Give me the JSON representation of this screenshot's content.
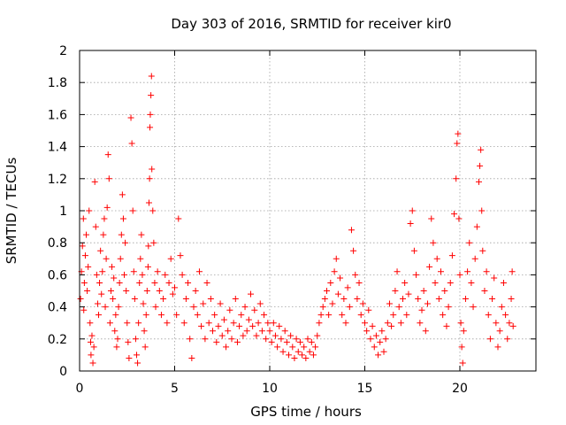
{
  "chart_data": {
    "type": "scatter",
    "title": "Day 303 of 2016, SRMTID for receiver kir0",
    "xlabel": "GPS time / hours",
    "ylabel": "SRMTID / TECUs",
    "xlim": [
      0,
      24
    ],
    "ylim": [
      0,
      2
    ],
    "xticks": [
      0,
      5,
      10,
      15,
      20
    ],
    "xtick_labels": [
      "0",
      "5",
      "10",
      "15",
      "20"
    ],
    "yticks": [
      0,
      0.2,
      0.4,
      0.6,
      0.8,
      1.0,
      1.2,
      1.4,
      1.6,
      1.8,
      2.0
    ],
    "ytick_labels": [
      "0",
      "0.2",
      "0.4",
      "0.6",
      "0.8",
      "1",
      "1.2",
      "1.4",
      "1.6",
      "1.8",
      "2"
    ],
    "grid": true,
    "marker": "+",
    "color": "#ff0000",
    "series": [
      {
        "name": "SRMTID",
        "points": [
          [
            0.05,
            0.45
          ],
          [
            0.1,
            0.62
          ],
          [
            0.15,
            0.78
          ],
          [
            0.2,
            0.95
          ],
          [
            0.22,
            0.38
          ],
          [
            0.25,
            0.55
          ],
          [
            0.3,
            0.72
          ],
          [
            0.35,
            0.85
          ],
          [
            0.4,
            0.5
          ],
          [
            0.45,
            0.65
          ],
          [
            0.5,
            1.0
          ],
          [
            0.55,
            0.3
          ],
          [
            0.58,
            0.18
          ],
          [
            0.6,
            0.1
          ],
          [
            0.65,
            0.22
          ],
          [
            0.7,
            0.05
          ],
          [
            0.75,
            0.15
          ],
          [
            0.8,
            1.18
          ],
          [
            0.85,
            0.9
          ],
          [
            0.9,
            0.6
          ],
          [
            0.95,
            0.42
          ],
          [
            1.0,
            0.35
          ],
          [
            1.05,
            0.55
          ],
          [
            1.1,
            0.75
          ],
          [
            1.15,
            0.48
          ],
          [
            1.2,
            0.62
          ],
          [
            1.25,
            0.85
          ],
          [
            1.3,
            0.95
          ],
          [
            1.35,
            0.4
          ],
          [
            1.4,
            0.7
          ],
          [
            1.45,
            1.02
          ],
          [
            1.5,
            1.35
          ],
          [
            1.55,
            1.2
          ],
          [
            1.6,
            0.3
          ],
          [
            1.65,
            0.5
          ],
          [
            1.7,
            0.65
          ],
          [
            1.75,
            0.45
          ],
          [
            1.8,
            0.58
          ],
          [
            1.85,
            0.25
          ],
          [
            1.9,
            0.35
          ],
          [
            1.95,
            0.15
          ],
          [
            2.0,
            0.2
          ],
          [
            2.05,
            0.4
          ],
          [
            2.1,
            0.55
          ],
          [
            2.15,
            0.7
          ],
          [
            2.2,
            0.85
          ],
          [
            2.25,
            1.1
          ],
          [
            2.3,
            0.95
          ],
          [
            2.35,
            0.6
          ],
          [
            2.4,
            0.8
          ],
          [
            2.45,
            0.5
          ],
          [
            2.5,
            0.3
          ],
          [
            2.55,
            0.18
          ],
          [
            2.6,
            0.08
          ],
          [
            2.7,
            1.58
          ],
          [
            2.75,
            1.42
          ],
          [
            2.8,
            1.0
          ],
          [
            2.85,
            0.62
          ],
          [
            2.9,
            0.45
          ],
          [
            2.95,
            0.2
          ],
          [
            3.0,
            0.1
          ],
          [
            3.05,
            0.05
          ],
          [
            3.1,
            0.3
          ],
          [
            3.15,
            0.55
          ],
          [
            3.2,
            0.7
          ],
          [
            3.25,
            0.85
          ],
          [
            3.3,
            0.6
          ],
          [
            3.35,
            0.42
          ],
          [
            3.4,
            0.25
          ],
          [
            3.45,
            0.15
          ],
          [
            3.5,
            0.35
          ],
          [
            3.55,
            0.5
          ],
          [
            3.6,
            0.65
          ],
          [
            3.62,
            0.78
          ],
          [
            3.65,
            1.05
          ],
          [
            3.68,
            1.2
          ],
          [
            3.7,
            1.52
          ],
          [
            3.72,
            1.6
          ],
          [
            3.75,
            1.72
          ],
          [
            3.78,
            1.84
          ],
          [
            3.8,
            1.26
          ],
          [
            3.85,
            1.0
          ],
          [
            3.9,
            0.8
          ],
          [
            3.95,
            0.55
          ],
          [
            4.0,
            0.4
          ],
          [
            4.1,
            0.62
          ],
          [
            4.2,
            0.5
          ],
          [
            4.3,
            0.35
          ],
          [
            4.4,
            0.45
          ],
          [
            4.5,
            0.6
          ],
          [
            4.6,
            0.3
          ],
          [
            4.7,
            0.55
          ],
          [
            4.8,
            0.7
          ],
          [
            4.9,
            0.48
          ],
          [
            5.0,
            0.52
          ],
          [
            5.1,
            0.35
          ],
          [
            5.2,
            0.95
          ],
          [
            5.3,
            0.72
          ],
          [
            5.4,
            0.6
          ],
          [
            5.5,
            0.3
          ],
          [
            5.6,
            0.45
          ],
          [
            5.7,
            0.55
          ],
          [
            5.8,
            0.2
          ],
          [
            5.9,
            0.08
          ],
          [
            6.0,
            0.4
          ],
          [
            6.1,
            0.5
          ],
          [
            6.2,
            0.35
          ],
          [
            6.3,
            0.62
          ],
          [
            6.4,
            0.28
          ],
          [
            6.5,
            0.42
          ],
          [
            6.6,
            0.2
          ],
          [
            6.7,
            0.55
          ],
          [
            6.8,
            0.3
          ],
          [
            6.9,
            0.45
          ],
          [
            7.0,
            0.25
          ],
          [
            7.1,
            0.35
          ],
          [
            7.2,
            0.18
          ],
          [
            7.3,
            0.28
          ],
          [
            7.4,
            0.42
          ],
          [
            7.5,
            0.22
          ],
          [
            7.6,
            0.32
          ],
          [
            7.7,
            0.15
          ],
          [
            7.8,
            0.25
          ],
          [
            7.9,
            0.38
          ],
          [
            8.0,
            0.2
          ],
          [
            8.1,
            0.3
          ],
          [
            8.2,
            0.45
          ],
          [
            8.3,
            0.18
          ],
          [
            8.4,
            0.28
          ],
          [
            8.5,
            0.35
          ],
          [
            8.6,
            0.22
          ],
          [
            8.7,
            0.4
          ],
          [
            8.8,
            0.25
          ],
          [
            8.9,
            0.32
          ],
          [
            9.0,
            0.48
          ],
          [
            9.1,
            0.28
          ],
          [
            9.2,
            0.38
          ],
          [
            9.3,
            0.22
          ],
          [
            9.4,
            0.3
          ],
          [
            9.5,
            0.42
          ],
          [
            9.6,
            0.25
          ],
          [
            9.7,
            0.35
          ],
          [
            9.8,
            0.2
          ],
          [
            9.9,
            0.3
          ],
          [
            10.0,
            0.25
          ],
          [
            10.1,
            0.18
          ],
          [
            10.2,
            0.3
          ],
          [
            10.3,
            0.22
          ],
          [
            10.4,
            0.15
          ],
          [
            10.5,
            0.28
          ],
          [
            10.6,
            0.2
          ],
          [
            10.7,
            0.12
          ],
          [
            10.8,
            0.25
          ],
          [
            10.9,
            0.18
          ],
          [
            11.0,
            0.1
          ],
          [
            11.1,
            0.22
          ],
          [
            11.2,
            0.15
          ],
          [
            11.3,
            0.08
          ],
          [
            11.4,
            0.2
          ],
          [
            11.5,
            0.12
          ],
          [
            11.6,
            0.18
          ],
          [
            11.7,
            0.1
          ],
          [
            11.8,
            0.15
          ],
          [
            11.9,
            0.08
          ],
          [
            12.0,
            0.2
          ],
          [
            12.1,
            0.12
          ],
          [
            12.2,
            0.18
          ],
          [
            12.3,
            0.1
          ],
          [
            12.4,
            0.15
          ],
          [
            12.5,
            0.22
          ],
          [
            12.6,
            0.3
          ],
          [
            12.7,
            0.35
          ],
          [
            12.8,
            0.4
          ],
          [
            12.9,
            0.45
          ],
          [
            13.0,
            0.5
          ],
          [
            13.1,
            0.35
          ],
          [
            13.2,
            0.55
          ],
          [
            13.3,
            0.42
          ],
          [
            13.4,
            0.62
          ],
          [
            13.5,
            0.7
          ],
          [
            13.6,
            0.48
          ],
          [
            13.7,
            0.58
          ],
          [
            13.8,
            0.35
          ],
          [
            13.9,
            0.45
          ],
          [
            14.0,
            0.3
          ],
          [
            14.1,
            0.52
          ],
          [
            14.2,
            0.4
          ],
          [
            14.3,
            0.88
          ],
          [
            14.4,
            0.75
          ],
          [
            14.5,
            0.6
          ],
          [
            14.6,
            0.45
          ],
          [
            14.7,
            0.55
          ],
          [
            14.8,
            0.35
          ],
          [
            14.9,
            0.42
          ],
          [
            15.0,
            0.3
          ],
          [
            15.1,
            0.25
          ],
          [
            15.2,
            0.38
          ],
          [
            15.3,
            0.2
          ],
          [
            15.4,
            0.28
          ],
          [
            15.5,
            0.15
          ],
          [
            15.6,
            0.22
          ],
          [
            15.7,
            0.1
          ],
          [
            15.8,
            0.18
          ],
          [
            15.9,
            0.25
          ],
          [
            16.0,
            0.12
          ],
          [
            16.1,
            0.2
          ],
          [
            16.2,
            0.3
          ],
          [
            16.3,
            0.42
          ],
          [
            16.4,
            0.28
          ],
          [
            16.5,
            0.35
          ],
          [
            16.6,
            0.5
          ],
          [
            16.7,
            0.62
          ],
          [
            16.8,
            0.4
          ],
          [
            16.9,
            0.3
          ],
          [
            17.0,
            0.45
          ],
          [
            17.1,
            0.55
          ],
          [
            17.2,
            0.35
          ],
          [
            17.3,
            0.48
          ],
          [
            17.4,
            0.92
          ],
          [
            17.5,
            1.0
          ],
          [
            17.6,
            0.75
          ],
          [
            17.7,
            0.6
          ],
          [
            17.8,
            0.45
          ],
          [
            17.9,
            0.3
          ],
          [
            18.0,
            0.38
          ],
          [
            18.1,
            0.5
          ],
          [
            18.2,
            0.25
          ],
          [
            18.3,
            0.42
          ],
          [
            18.4,
            0.65
          ],
          [
            18.5,
            0.95
          ],
          [
            18.6,
            0.8
          ],
          [
            18.7,
            0.55
          ],
          [
            18.8,
            0.7
          ],
          [
            18.9,
            0.45
          ],
          [
            19.0,
            0.62
          ],
          [
            19.1,
            0.35
          ],
          [
            19.2,
            0.5
          ],
          [
            19.3,
            0.28
          ],
          [
            19.4,
            0.4
          ],
          [
            19.5,
            0.55
          ],
          [
            19.6,
            0.72
          ],
          [
            19.7,
            0.98
          ],
          [
            19.8,
            1.2
          ],
          [
            19.85,
            1.42
          ],
          [
            19.9,
            1.48
          ],
          [
            19.95,
            0.95
          ],
          [
            20.0,
            0.6
          ],
          [
            20.05,
            0.3
          ],
          [
            20.1,
            0.15
          ],
          [
            20.15,
            0.05
          ],
          [
            20.2,
            0.25
          ],
          [
            20.3,
            0.45
          ],
          [
            20.4,
            0.62
          ],
          [
            20.5,
            0.8
          ],
          [
            20.6,
            0.55
          ],
          [
            20.7,
            0.4
          ],
          [
            20.8,
            0.7
          ],
          [
            20.9,
            0.9
          ],
          [
            21.0,
            1.18
          ],
          [
            21.05,
            1.28
          ],
          [
            21.1,
            1.38
          ],
          [
            21.15,
            1.0
          ],
          [
            21.2,
            0.75
          ],
          [
            21.3,
            0.5
          ],
          [
            21.4,
            0.62
          ],
          [
            21.5,
            0.35
          ],
          [
            21.6,
            0.2
          ],
          [
            21.7,
            0.45
          ],
          [
            21.8,
            0.58
          ],
          [
            21.9,
            0.3
          ],
          [
            22.0,
            0.15
          ],
          [
            22.1,
            0.25
          ],
          [
            22.2,
            0.4
          ],
          [
            22.3,
            0.55
          ],
          [
            22.4,
            0.35
          ],
          [
            22.5,
            0.2
          ],
          [
            22.6,
            0.3
          ],
          [
            22.7,
            0.45
          ],
          [
            22.75,
            0.62
          ],
          [
            22.8,
            0.28
          ]
        ]
      }
    ]
  }
}
